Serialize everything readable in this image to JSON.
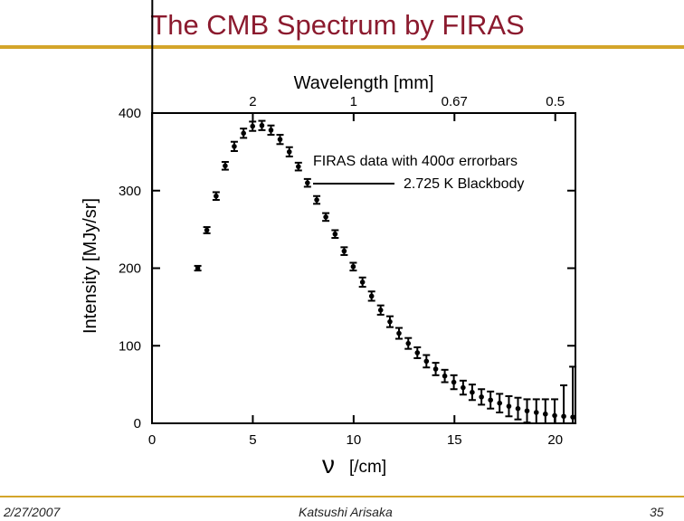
{
  "slide": {
    "title": "The CMB Spectrum by FIRAS",
    "footer_date": "2/27/2007",
    "footer_author": "Katsushi Arisaka",
    "footer_page": "35",
    "accent_color": "#d4a52a",
    "title_color": "#8b1a2e"
  },
  "chart_data": {
    "type": "scatter",
    "title": "",
    "xlabel_symbol": "ν",
    "xlabel_unit": "[/cm]",
    "ylabel": "Intensity [MJy/sr]",
    "top_axis_label": "Wavelength [mm]",
    "xlim": [
      0,
      21
    ],
    "ylim": [
      0,
      400
    ],
    "x_ticks": [
      0,
      5,
      10,
      15,
      20
    ],
    "y_ticks": [
      0,
      100,
      200,
      300,
      400
    ],
    "top_ticks": [
      {
        "label": "2",
        "nu": 5
      },
      {
        "label": "1",
        "nu": 10
      },
      {
        "label": "0.67",
        "nu": 15
      },
      {
        "label": "0.5",
        "nu": 20
      }
    ],
    "legend": {
      "data_label": "FIRAS data with 400σ errorbars",
      "curve_label": "2.725 K Blackbody",
      "position": "top-right"
    },
    "blackbody_temperature_K": 2.725,
    "series": [
      {
        "name": "FIRAS data",
        "x": [
          2.27,
          2.72,
          3.18,
          3.63,
          4.08,
          4.54,
          4.99,
          5.45,
          5.9,
          6.35,
          6.81,
          7.26,
          7.71,
          8.17,
          8.62,
          9.08,
          9.53,
          9.98,
          10.44,
          10.89,
          11.34,
          11.8,
          12.25,
          12.71,
          13.16,
          13.61,
          14.07,
          14.52,
          14.97,
          15.43,
          15.88,
          16.34,
          16.79,
          17.24,
          17.7,
          18.15,
          18.6,
          19.06,
          19.51,
          19.97,
          20.42,
          20.87
        ],
        "y": [
          200,
          249,
          293,
          332,
          357,
          374,
          383,
          384,
          378,
          366,
          350,
          331,
          310,
          288,
          266,
          244,
          222,
          202,
          182,
          164,
          146,
          131,
          116,
          103,
          91,
          80,
          70,
          61,
          53,
          46,
          40,
          34,
          30,
          26,
          22,
          19,
          16,
          14,
          12,
          10,
          9,
          8
        ],
        "error": [
          3,
          4,
          5,
          5,
          6,
          6,
          6,
          6,
          6,
          6,
          6,
          5,
          5,
          5,
          5,
          5,
          5,
          5,
          6,
          6,
          6,
          7,
          7,
          7,
          7,
          8,
          8,
          8,
          9,
          9,
          10,
          10,
          11,
          12,
          13,
          14,
          15,
          17,
          19,
          21,
          40,
          65
        ]
      }
    ]
  }
}
